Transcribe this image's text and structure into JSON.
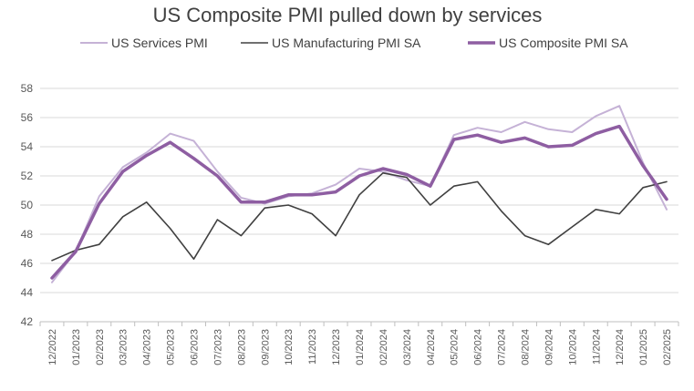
{
  "chart_data": {
    "type": "line",
    "title": "US Composite PMI pulled down by services",
    "xlabel": "",
    "ylabel": "",
    "ylim": [
      42,
      58
    ],
    "yticks": [
      42,
      44,
      46,
      48,
      50,
      52,
      54,
      56,
      58
    ],
    "grid": true,
    "legend_position": "top",
    "categories": [
      "12/2022",
      "01/2023",
      "02/2023",
      "03/2023",
      "04/2023",
      "05/2023",
      "06/2023",
      "07/2023",
      "08/2023",
      "09/2023",
      "10/2023",
      "11/2023",
      "12/2023",
      "01/2024",
      "02/2024",
      "03/2024",
      "04/2024",
      "05/2024",
      "06/2024",
      "07/2024",
      "08/2024",
      "09/2024",
      "10/2024",
      "11/2024",
      "12/2024",
      "01/2025",
      "02/2025"
    ],
    "series": [
      {
        "name": "US Services PMI",
        "color": "#c5b2d6",
        "width": 2,
        "values": [
          44.7,
          46.8,
          50.6,
          52.6,
          53.6,
          54.9,
          54.4,
          52.3,
          50.5,
          50.1,
          50.6,
          50.8,
          51.4,
          52.5,
          52.3,
          51.7,
          51.3,
          54.8,
          55.3,
          55.0,
          55.7,
          55.2,
          55.0,
          56.1,
          56.8,
          52.9,
          49.7
        ]
      },
      {
        "name": "US Manufacturing PMI SA",
        "color": "#404040",
        "width": 1.6,
        "values": [
          46.2,
          46.9,
          47.3,
          49.2,
          50.2,
          48.4,
          46.3,
          49.0,
          47.9,
          49.8,
          50.0,
          49.4,
          47.9,
          50.7,
          52.2,
          51.9,
          50.0,
          51.3,
          51.6,
          49.6,
          47.9,
          47.3,
          48.5,
          49.7,
          49.4,
          51.2,
          51.6
        ]
      },
      {
        "name": "US Composite PMI SA",
        "color": "#8e5ea2",
        "width": 3.5,
        "values": [
          45.0,
          46.8,
          50.1,
          52.3,
          53.4,
          54.3,
          53.2,
          52.0,
          50.2,
          50.2,
          50.7,
          50.7,
          50.9,
          52.0,
          52.5,
          52.1,
          51.3,
          54.5,
          54.8,
          54.3,
          54.6,
          54.0,
          54.1,
          54.9,
          55.4,
          52.7,
          50.4
        ]
      }
    ]
  }
}
